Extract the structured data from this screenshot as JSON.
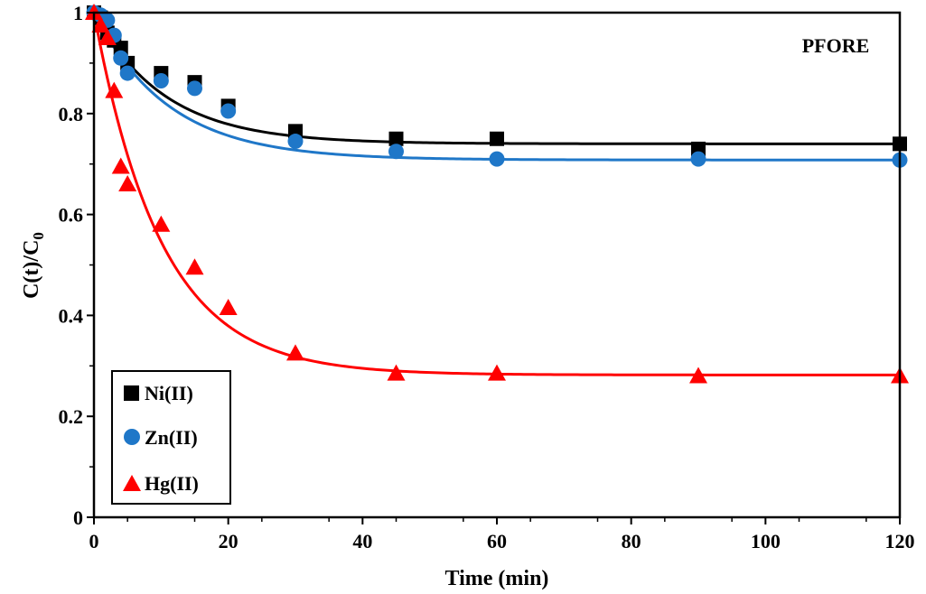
{
  "chart_data": {
    "type": "scatter",
    "title": "",
    "annotation": "PFORE",
    "xlabel": "Time (min)",
    "ylabel_main": "C(t)/C",
    "ylabel_sub": "0",
    "xlim": [
      0,
      120
    ],
    "ylim": [
      0,
      1
    ],
    "x_ticks": [
      0,
      20,
      40,
      60,
      80,
      100,
      120
    ],
    "y_ticks": [
      0,
      0.2,
      0.4,
      0.6,
      0.8,
      1
    ],
    "x_tick_labels": [
      "0",
      "20",
      "40",
      "60",
      "80",
      "100",
      "120"
    ],
    "y_tick_labels": [
      "0",
      "0.2",
      "0.4",
      "0.6",
      "0.8",
      "1"
    ],
    "grid": false,
    "legend_position": "bottom-left",
    "series": [
      {
        "name": "Ni(II)",
        "marker": "square",
        "color": "#000000",
        "points": [
          [
            0,
            1.0
          ],
          [
            1,
            0.99
          ],
          [
            2,
            0.96
          ],
          [
            3,
            0.945
          ],
          [
            4,
            0.93
          ],
          [
            5,
            0.9
          ],
          [
            10,
            0.88
          ],
          [
            15,
            0.862
          ],
          [
            20,
            0.815
          ],
          [
            30,
            0.765
          ],
          [
            45,
            0.75
          ],
          [
            60,
            0.75
          ],
          [
            90,
            0.73
          ],
          [
            120,
            0.74
          ]
        ],
        "fit": {
          "q": 0.26,
          "k": 0.095
        }
      },
      {
        "name": "Zn(II)",
        "marker": "circle",
        "color": "#1f77c8",
        "points": [
          [
            0,
            1.0
          ],
          [
            1,
            0.995
          ],
          [
            2,
            0.985
          ],
          [
            3,
            0.955
          ],
          [
            4,
            0.91
          ],
          [
            5,
            0.88
          ],
          [
            10,
            0.865
          ],
          [
            15,
            0.85
          ],
          [
            20,
            0.805
          ],
          [
            30,
            0.745
          ],
          [
            45,
            0.725
          ],
          [
            60,
            0.71
          ],
          [
            90,
            0.71
          ],
          [
            120,
            0.708
          ]
        ],
        "fit": {
          "q": 0.292,
          "k": 0.09
        }
      },
      {
        "name": "Hg(II)",
        "marker": "triangle",
        "color": "#ff0000",
        "points": [
          [
            0,
            1.0
          ],
          [
            1,
            0.975
          ],
          [
            2,
            0.95
          ],
          [
            3,
            0.845
          ],
          [
            4,
            0.695
          ],
          [
            5,
            0.66
          ],
          [
            10,
            0.58
          ],
          [
            15,
            0.495
          ],
          [
            20,
            0.415
          ],
          [
            30,
            0.325
          ],
          [
            45,
            0.285
          ],
          [
            60,
            0.285
          ],
          [
            90,
            0.28
          ],
          [
            120,
            0.28
          ]
        ],
        "fit": {
          "q": 0.718,
          "k": 0.1
        }
      }
    ]
  }
}
